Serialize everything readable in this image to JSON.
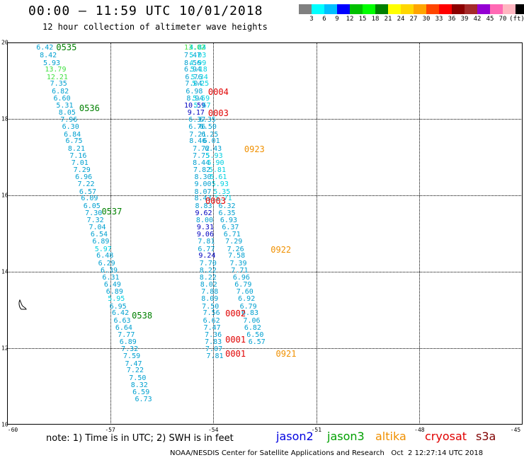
{
  "header": {
    "title": "00:00 – 11:59 UTC 10/01/2018",
    "subtitle": "12 hour collection of altimeter wave heights"
  },
  "legend": {
    "colors": [
      "#808080",
      "#00ffff",
      "#00bfff",
      "#0000ff",
      "#00c000",
      "#00ff00",
      "#008000",
      "#ffff00",
      "#ffd700",
      "#ffa500",
      "#ff4500",
      "#ff0000",
      "#8b0000",
      "#a52a2a",
      "#9400d3",
      "#ff69b4",
      "#ffb6c1",
      "#000000"
    ],
    "labels": [
      "3",
      "6",
      "9",
      "12",
      "15",
      "18",
      "21",
      "24",
      "27",
      "30",
      "33",
      "36",
      "39",
      "42",
      "45",
      "70"
    ],
    "unit": "(ft)"
  },
  "map": {
    "lat_labels": [
      "20",
      "18",
      "16",
      "14",
      "12",
      "10"
    ],
    "lon_labels": [
      "-60",
      "-57",
      "-54",
      "-51",
      "-48",
      "-45"
    ],
    "lat_range": [
      10,
      20
    ],
    "lon_range": [
      -60,
      -45
    ],
    "grid": true
  },
  "tracks": [
    {
      "name": "track-0535",
      "time": "0535",
      "time_color": "#008000",
      "time_pos": {
        "lon": -58.57,
        "lat": 19.87
      },
      "points": [
        {
          "lon": -59.15,
          "lat": 19.85,
          "v": "6.42",
          "c": "#00a0d0"
        },
        {
          "lon": -59.05,
          "lat": 19.65,
          "v": "8.42",
          "c": "#00a0d0"
        },
        {
          "lon": -58.95,
          "lat": 19.45,
          "v": "5.93",
          "c": "#00a0d0"
        },
        {
          "lon": -58.9,
          "lat": 19.27,
          "v": "13.79",
          "c": "#40e040"
        },
        {
          "lon": -58.85,
          "lat": 19.08,
          "v": "12.21",
          "c": "#40e040"
        },
        {
          "lon": -58.75,
          "lat": 18.9,
          "v": "7.35",
          "c": "#00a0d0"
        },
        {
          "lon": -58.7,
          "lat": 18.71,
          "v": "6.82",
          "c": "#00a0d0"
        },
        {
          "lon": -58.65,
          "lat": 18.52,
          "v": "6.60",
          "c": "#00a0d0"
        },
        {
          "lon": -58.57,
          "lat": 18.33,
          "v": "5.31",
          "c": "#00a0d0"
        },
        {
          "lon": -58.5,
          "lat": 18.15,
          "v": "8.05",
          "c": "#00a0d0"
        },
        {
          "lon": -58.45,
          "lat": 17.96,
          "v": "7.96",
          "c": "#00a0d0"
        },
        {
          "lon": -58.4,
          "lat": 17.77,
          "v": "6.30",
          "c": "#00a0d0"
        },
        {
          "lon": -58.35,
          "lat": 17.58,
          "v": "6.84",
          "c": "#00a0d0"
        },
        {
          "lon": -58.3,
          "lat": 17.4,
          "v": "6.75",
          "c": "#00a0d0"
        },
        {
          "lon": -58.23,
          "lat": 17.21,
          "v": "8.21",
          "c": "#00a0d0"
        },
        {
          "lon": -58.18,
          "lat": 17.02,
          "v": "7.16",
          "c": "#00a0d0"
        },
        {
          "lon": -58.13,
          "lat": 16.83,
          "v": "7.01",
          "c": "#00a0d0"
        },
        {
          "lon": -58.07,
          "lat": 16.65,
          "v": "7.29",
          "c": "#00a0d0"
        },
        {
          "lon": -58.02,
          "lat": 16.46,
          "v": "6.96",
          "c": "#00a0d0"
        },
        {
          "lon": -57.95,
          "lat": 16.27,
          "v": "7.22",
          "c": "#00a0d0"
        },
        {
          "lon": -57.9,
          "lat": 16.08,
          "v": "6.57",
          "c": "#00a0d0"
        },
        {
          "lon": -57.85,
          "lat": 15.9,
          "v": "6.09",
          "c": "#00a0d0"
        },
        {
          "lon": -57.78,
          "lat": 15.71,
          "v": "6.05",
          "c": "#00a0d0"
        },
        {
          "lon": -57.73,
          "lat": 15.52,
          "v": "7.30",
          "c": "#00a0d0"
        },
        {
          "lon": -57.68,
          "lat": 15.33,
          "v": "7.32",
          "c": "#00a0d0"
        },
        {
          "lon": -57.62,
          "lat": 15.15,
          "v": "7.04",
          "c": "#00a0d0"
        },
        {
          "lon": -57.57,
          "lat": 14.96,
          "v": "6.54",
          "c": "#00a0d0"
        },
        {
          "lon": -57.52,
          "lat": 14.77,
          "v": "6.89",
          "c": "#00a0d0"
        },
        {
          "lon": -57.45,
          "lat": 14.58,
          "v": "5.97",
          "c": "#00d0e0"
        },
        {
          "lon": -57.4,
          "lat": 14.4,
          "v": "6.48",
          "c": "#00a0d0"
        },
        {
          "lon": -57.35,
          "lat": 14.21,
          "v": "6.29",
          "c": "#00a0d0"
        },
        {
          "lon": -57.28,
          "lat": 14.02,
          "v": "6.39",
          "c": "#00a0d0"
        },
        {
          "lon": -57.23,
          "lat": 13.83,
          "v": "6.31",
          "c": "#00a0d0"
        },
        {
          "lon": -57.18,
          "lat": 13.65,
          "v": "6.49",
          "c": "#00a0d0"
        },
        {
          "lon": -57.12,
          "lat": 13.46,
          "v": "6.89",
          "c": "#00a0d0"
        },
        {
          "lon": -57.07,
          "lat": 13.27,
          "v": "5.95",
          "c": "#00d0e0"
        },
        {
          "lon": -57.02,
          "lat": 13.08,
          "v": "6.95",
          "c": "#00a0d0"
        },
        {
          "lon": -56.95,
          "lat": 12.9,
          "v": "6.42",
          "c": "#00a0d0"
        },
        {
          "lon": -56.9,
          "lat": 12.71,
          "v": "6.63",
          "c": "#00a0d0"
        },
        {
          "lon": -56.85,
          "lat": 12.52,
          "v": "6.64",
          "c": "#00a0d0"
        },
        {
          "lon": -56.78,
          "lat": 12.33,
          "v": "7.77",
          "c": "#00a0d0"
        },
        {
          "lon": -56.73,
          "lat": 12.15,
          "v": "6.89",
          "c": "#00a0d0"
        },
        {
          "lon": -56.68,
          "lat": 11.96,
          "v": "7.32",
          "c": "#00a0d0"
        },
        {
          "lon": -56.62,
          "lat": 11.77,
          "v": "7.59",
          "c": "#00a0d0"
        },
        {
          "lon": -56.57,
          "lat": 11.58,
          "v": "7.47",
          "c": "#00a0d0"
        },
        {
          "lon": -56.52,
          "lat": 11.4,
          "v": "7.22",
          "c": "#00a0d0"
        },
        {
          "lon": -56.45,
          "lat": 11.21,
          "v": "7.50",
          "c": "#00a0d0"
        },
        {
          "lon": -56.4,
          "lat": 11.02,
          "v": "8.32",
          "c": "#00a0d0"
        },
        {
          "lon": -56.35,
          "lat": 10.83,
          "v": "6.59",
          "c": "#00a0d0"
        },
        {
          "lon": -56.28,
          "lat": 10.65,
          "v": "6.73",
          "c": "#00a0d0"
        }
      ]
    },
    {
      "name": "track-0536",
      "time": "0536",
      "time_color": "#008000",
      "time_pos": {
        "lon": -57.9,
        "lat": 18.27
      },
      "points": []
    },
    {
      "name": "track-0537",
      "time": "0537",
      "time_color": "#008000",
      "time_pos": {
        "lon": -57.25,
        "lat": 15.58
      },
      "points": []
    },
    {
      "name": "track-0538",
      "time": "0538",
      "time_color": "#008000",
      "time_pos": {
        "lon": -56.37,
        "lat": 12.85
      },
      "points": []
    },
    {
      "name": "track-inner",
      "time": "",
      "time_color": "#000000",
      "time_pos": {
        "lon": -60,
        "lat": 20
      },
      "points": [
        {
          "lon": -54.85,
          "lat": 19.85,
          "v": "13.02",
          "c": "#40e040"
        },
        {
          "lon": -54.85,
          "lat": 19.65,
          "v": "7.47",
          "c": "#00a0d0"
        },
        {
          "lon": -54.85,
          "lat": 19.45,
          "v": "8.56",
          "c": "#00a0d0"
        },
        {
          "lon": -54.85,
          "lat": 19.27,
          "v": "6.94",
          "c": "#00a0d0"
        },
        {
          "lon": -54.82,
          "lat": 19.08,
          "v": "6.76",
          "c": "#00a0d0"
        },
        {
          "lon": -54.82,
          "lat": 18.9,
          "v": "7.04",
          "c": "#00a0d0"
        },
        {
          "lon": -54.8,
          "lat": 18.71,
          "v": "6.98",
          "c": "#00a0d0"
        },
        {
          "lon": -54.78,
          "lat": 18.52,
          "v": "8.94",
          "c": "#00a0d0"
        },
        {
          "lon": -54.85,
          "lat": 18.33,
          "v": "10.59",
          "c": "#0000c0"
        },
        {
          "lon": -54.75,
          "lat": 18.15,
          "v": "9.17",
          "c": "#0000c0"
        },
        {
          "lon": -54.72,
          "lat": 17.96,
          "v": "6.37",
          "c": "#00a0d0"
        },
        {
          "lon": -54.72,
          "lat": 17.77,
          "v": "6.76",
          "c": "#00a0d0"
        },
        {
          "lon": -54.7,
          "lat": 17.58,
          "v": "7.21",
          "c": "#00a0d0"
        },
        {
          "lon": -54.7,
          "lat": 17.4,
          "v": "8.46",
          "c": "#00a0d0"
        },
        {
          "lon": -54.6,
          "lat": 17.21,
          "v": "7.72",
          "c": "#00a0d0"
        },
        {
          "lon": -54.6,
          "lat": 17.02,
          "v": "7.75",
          "c": "#00a0d0"
        },
        {
          "lon": -54.6,
          "lat": 16.83,
          "v": "8.44",
          "c": "#00a0d0"
        },
        {
          "lon": -54.58,
          "lat": 16.65,
          "v": "7.82",
          "c": "#00a0d0"
        },
        {
          "lon": -54.55,
          "lat": 16.46,
          "v": "8.30",
          "c": "#00a0d0"
        },
        {
          "lon": -54.55,
          "lat": 16.27,
          "v": "9.00",
          "c": "#00a0d0"
        },
        {
          "lon": -54.55,
          "lat": 16.08,
          "v": "8.07",
          "c": "#00a0d0"
        },
        {
          "lon": -54.55,
          "lat": 15.9,
          "v": "8.43",
          "c": "#00a0d0"
        },
        {
          "lon": -54.53,
          "lat": 15.71,
          "v": "8.83",
          "c": "#00a0d0"
        },
        {
          "lon": -54.53,
          "lat": 15.52,
          "v": "9.62",
          "c": "#0000c0"
        },
        {
          "lon": -54.5,
          "lat": 15.33,
          "v": "8.00",
          "c": "#00a0d0"
        },
        {
          "lon": -54.48,
          "lat": 15.15,
          "v": "9.31",
          "c": "#0000c0"
        },
        {
          "lon": -54.48,
          "lat": 14.96,
          "v": "9.06",
          "c": "#0000c0"
        },
        {
          "lon": -54.45,
          "lat": 14.77,
          "v": "7.81",
          "c": "#00a0d0"
        },
        {
          "lon": -54.45,
          "lat": 14.58,
          "v": "6.77",
          "c": "#00a0d0"
        },
        {
          "lon": -54.43,
          "lat": 14.4,
          "v": "9.24",
          "c": "#0000c0"
        },
        {
          "lon": -54.4,
          "lat": 14.21,
          "v": "7.70",
          "c": "#00a0d0"
        },
        {
          "lon": -54.4,
          "lat": 14.02,
          "v": "8.22",
          "c": "#00a0d0"
        },
        {
          "lon": -54.4,
          "lat": 13.83,
          "v": "8.22",
          "c": "#00a0d0"
        },
        {
          "lon": -54.38,
          "lat": 13.65,
          "v": "8.02",
          "c": "#00a0d0"
        },
        {
          "lon": -54.35,
          "lat": 13.46,
          "v": "7.88",
          "c": "#00a0d0"
        },
        {
          "lon": -54.35,
          "lat": 13.27,
          "v": "8.09",
          "c": "#00a0d0"
        },
        {
          "lon": -54.33,
          "lat": 13.08,
          "v": "7.50",
          "c": "#00a0d0"
        },
        {
          "lon": -54.3,
          "lat": 12.9,
          "v": "7.56",
          "c": "#00a0d0"
        },
        {
          "lon": -54.3,
          "lat": 12.71,
          "v": "6.62",
          "c": "#00a0d0"
        },
        {
          "lon": -54.28,
          "lat": 12.52,
          "v": "7.47",
          "c": "#00a0d0"
        },
        {
          "lon": -54.25,
          "lat": 12.33,
          "v": "7.36",
          "c": "#00a0d0"
        },
        {
          "lon": -54.25,
          "lat": 12.15,
          "v": "7.83",
          "c": "#00a0d0"
        },
        {
          "lon": -54.23,
          "lat": 11.96,
          "v": "7.07",
          "c": "#00a0d0"
        },
        {
          "lon": -54.2,
          "lat": 11.77,
          "v": "7.81",
          "c": "#00a0d0"
        }
      ]
    },
    {
      "name": "track-outer",
      "time": "",
      "time_color": "#000000",
      "time_pos": {
        "lon": -60,
        "lat": 20
      },
      "points": [
        {
          "lon": -54.7,
          "lat": 19.85,
          "v": "4.84",
          "c": "#00d0e0"
        },
        {
          "lon": -54.7,
          "lat": 19.65,
          "v": "5.03",
          "c": "#00d0e0"
        },
        {
          "lon": -54.7,
          "lat": 19.45,
          "v": "4.99",
          "c": "#00d0e0"
        },
        {
          "lon": -54.67,
          "lat": 19.27,
          "v": "5.18",
          "c": "#00d0e0"
        },
        {
          "lon": -54.65,
          "lat": 19.08,
          "v": "5.34",
          "c": "#00d0e0"
        },
        {
          "lon": -54.62,
          "lat": 18.9,
          "v": "5.25",
          "c": "#00d0e0"
        },
        {
          "lon": -54.6,
          "lat": 18.52,
          "v": "5.59",
          "c": "#00d0e0"
        },
        {
          "lon": -54.57,
          "lat": 18.33,
          "v": "5.67",
          "c": "#00d0e0"
        },
        {
          "lon": -54.42,
          "lat": 17.96,
          "v": "6.35",
          "c": "#00a0d0"
        },
        {
          "lon": -54.4,
          "lat": 17.77,
          "v": "6.50",
          "c": "#00a0d0"
        },
        {
          "lon": -54.35,
          "lat": 17.58,
          "v": "6.25",
          "c": "#00a0d0"
        },
        {
          "lon": -54.3,
          "lat": 17.4,
          "v": "6.01",
          "c": "#00a0d0"
        },
        {
          "lon": -54.25,
          "lat": 17.21,
          "v": "6.43",
          "c": "#00a0d0"
        },
        {
          "lon": -54.22,
          "lat": 17.02,
          "v": "5.93",
          "c": "#00d0e0"
        },
        {
          "lon": -54.18,
          "lat": 16.83,
          "v": "5.90",
          "c": "#00d0e0"
        },
        {
          "lon": -54.13,
          "lat": 16.65,
          "v": "5.81",
          "c": "#00d0e0"
        },
        {
          "lon": -54.1,
          "lat": 16.46,
          "v": "5.61",
          "c": "#00d0e0"
        },
        {
          "lon": -54.05,
          "lat": 16.27,
          "v": "5.93",
          "c": "#00d0e0"
        },
        {
          "lon": -54.0,
          "lat": 16.08,
          "v": "5.35",
          "c": "#00d0e0"
        },
        {
          "lon": -53.95,
          "lat": 15.9,
          "v": "5.71",
          "c": "#00d0e0"
        },
        {
          "lon": -53.85,
          "lat": 15.71,
          "v": "6.32",
          "c": "#00a0d0"
        },
        {
          "lon": -53.85,
          "lat": 15.52,
          "v": "6.35",
          "c": "#00a0d0"
        },
        {
          "lon": -53.8,
          "lat": 15.33,
          "v": "6.93",
          "c": "#00a0d0"
        },
        {
          "lon": -53.75,
          "lat": 15.15,
          "v": "6.37",
          "c": "#00a0d0"
        },
        {
          "lon": -53.7,
          "lat": 14.96,
          "v": "6.71",
          "c": "#00a0d0"
        },
        {
          "lon": -53.65,
          "lat": 14.77,
          "v": "7.29",
          "c": "#00a0d0"
        },
        {
          "lon": -53.6,
          "lat": 14.58,
          "v": "7.26",
          "c": "#00a0d0"
        },
        {
          "lon": -53.57,
          "lat": 14.4,
          "v": "7.58",
          "c": "#00a0d0"
        },
        {
          "lon": -53.52,
          "lat": 14.21,
          "v": "7.39",
          "c": "#00a0d0"
        },
        {
          "lon": -53.48,
          "lat": 14.02,
          "v": "7.71",
          "c": "#00a0d0"
        },
        {
          "lon": -53.43,
          "lat": 13.83,
          "v": "6.96",
          "c": "#00a0d0"
        },
        {
          "lon": -53.38,
          "lat": 13.65,
          "v": "6.79",
          "c": "#00a0d0"
        },
        {
          "lon": -53.33,
          "lat": 13.46,
          "v": "7.60",
          "c": "#00a0d0"
        },
        {
          "lon": -53.28,
          "lat": 13.27,
          "v": "6.92",
          "c": "#00a0d0"
        },
        {
          "lon": -53.23,
          "lat": 13.08,
          "v": "6.79",
          "c": "#00a0d0"
        },
        {
          "lon": -53.18,
          "lat": 12.9,
          "v": "6.83",
          "c": "#00a0d0"
        },
        {
          "lon": -53.13,
          "lat": 12.71,
          "v": "7.06",
          "c": "#00a0d0"
        },
        {
          "lon": -53.1,
          "lat": 12.52,
          "v": "6.82",
          "c": "#00a0d0"
        },
        {
          "lon": -53.03,
          "lat": 12.33,
          "v": "6.50",
          "c": "#00a0d0"
        },
        {
          "lon": -52.98,
          "lat": 12.15,
          "v": "6.57",
          "c": "#00a0d0"
        }
      ]
    }
  ],
  "time_labels": [
    {
      "name": "time-label-0004",
      "text": "0004",
      "color": "#e00000",
      "lon": -54.15,
      "lat": 18.7
    },
    {
      "name": "time-label-0003-a",
      "text": "0003",
      "color": "#e00000",
      "lon": -54.15,
      "lat": 18.15
    },
    {
      "name": "time-label-0923",
      "text": "0923",
      "color": "#f09000",
      "lon": -53.1,
      "lat": 17.21
    },
    {
      "name": "time-label-0003-b",
      "text": "0003",
      "color": "#e00000",
      "lon": -54.23,
      "lat": 15.85
    },
    {
      "name": "time-label-0922",
      "text": "0922",
      "color": "#f09000",
      "lon": -52.33,
      "lat": 14.58
    },
    {
      "name": "time-label-0002",
      "text": "0002",
      "color": "#e00000",
      "lon": -53.65,
      "lat": 12.9
    },
    {
      "name": "time-label-0001-a",
      "text": "0001",
      "color": "#e00000",
      "lon": -53.65,
      "lat": 12.22
    },
    {
      "name": "time-label-0001-b",
      "text": "0001",
      "color": "#e00000",
      "lon": -53.65,
      "lat": 11.85
    },
    {
      "name": "time-label-0921",
      "text": "0921",
      "color": "#f09000",
      "lon": -52.18,
      "lat": 11.85
    }
  ],
  "note": "note: 1) Time is in UTC; 2) SWH is in feet",
  "satellites": [
    {
      "name": "jason2",
      "color": "#0000e0"
    },
    {
      "name": "jason3",
      "color": "#00a000"
    },
    {
      "name": "altika",
      "color": "#f09000"
    },
    {
      "name": "cryosat",
      "color": "#e00000"
    },
    {
      "name": "s3a",
      "color": "#800000"
    }
  ],
  "footer": "NOAA/NESDIS Center for Satellite Applications and Research   Oct  2 12:27:14 UTC 2018"
}
